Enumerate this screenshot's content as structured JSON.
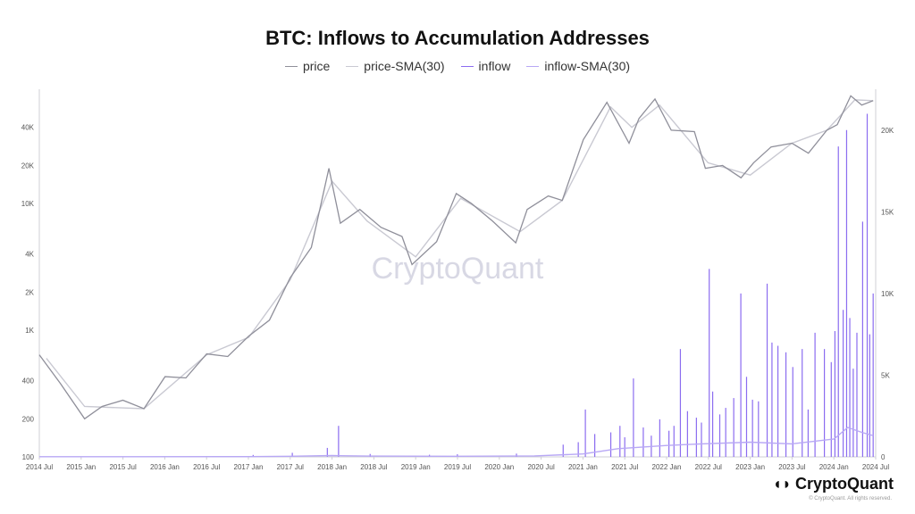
{
  "chart_data": {
    "type": "line",
    "title": "BTC: Inflows to Accumulation Addresses",
    "legend_position": "top-center",
    "grid": false,
    "watermark": "CryptoQuant",
    "x_axis": {
      "range": [
        "2014-07-01",
        "2024-07-01"
      ],
      "tick_labels": [
        "2014 Jul",
        "2015 Jan",
        "2015 Jul",
        "2016 Jan",
        "2016 Jul",
        "2017 Jan",
        "2017 Jul",
        "2018 Jan",
        "2018 Jul",
        "2019 Jan",
        "2019 Jul",
        "2020 Jan",
        "2020 Jul",
        "2021 Jan",
        "2021 Jul",
        "2022 Jan",
        "2022 Jul",
        "2023 Jan",
        "2023 Jul",
        "2024 Jan",
        "2024 Jul"
      ]
    },
    "y_left": {
      "scale": "log",
      "range": [
        100,
        80000
      ],
      "tick_labels": [
        "100",
        "200",
        "400",
        "1K",
        "2K",
        "4K",
        "10K",
        "20K",
        "40K"
      ],
      "tick_values": [
        100,
        200,
        400,
        1000,
        2000,
        4000,
        10000,
        20000,
        40000
      ]
    },
    "y_right": {
      "scale": "linear",
      "range": [
        0,
        22500
      ],
      "tick_labels": [
        "0",
        "5K",
        "10K",
        "15K",
        "20K"
      ],
      "tick_values": [
        0,
        5000,
        10000,
        15000,
        20000
      ]
    },
    "series": [
      {
        "name": "price",
        "axis": "left",
        "color": "#8f8f9a",
        "x": [
          "2014-07-01",
          "2014-10-01",
          "2015-01-15",
          "2015-04-01",
          "2015-07-01",
          "2015-10-01",
          "2016-01-01",
          "2016-04-01",
          "2016-07-01",
          "2016-10-01",
          "2017-01-01",
          "2017-04-01",
          "2017-07-01",
          "2017-10-01",
          "2017-12-17",
          "2018-02-05",
          "2018-05-01",
          "2018-08-01",
          "2018-11-01",
          "2018-12-15",
          "2019-04-01",
          "2019-06-26",
          "2019-09-01",
          "2019-12-01",
          "2020-03-12",
          "2020-05-01",
          "2020-08-01",
          "2020-10-01",
          "2021-01-01",
          "2021-04-14",
          "2021-07-20",
          "2021-09-01",
          "2021-11-10",
          "2022-01-20",
          "2022-05-01",
          "2022-06-18",
          "2022-09-01",
          "2022-11-21",
          "2023-01-15",
          "2023-04-01",
          "2023-07-01",
          "2023-09-11",
          "2023-12-01",
          "2024-01-15",
          "2024-03-14",
          "2024-05-01",
          "2024-06-20"
        ],
        "y": [
          640,
          380,
          200,
          250,
          280,
          240,
          430,
          420,
          650,
          620,
          900,
          1200,
          2600,
          4500,
          19000,
          7000,
          9000,
          6500,
          5500,
          3300,
          5000,
          12000,
          10000,
          7300,
          4900,
          9000,
          11500,
          10600,
          32000,
          63000,
          30000,
          47000,
          67000,
          38000,
          37000,
          19000,
          20000,
          16000,
          21000,
          28000,
          30000,
          25000,
          38000,
          42000,
          71000,
          60000,
          65000
        ]
      },
      {
        "name": "price-SMA(30)",
        "axis": "left",
        "color": "#c9c9d2",
        "x": [
          "2014-08-01",
          "2015-01-15",
          "2015-10-01",
          "2016-07-01",
          "2017-01-01",
          "2017-07-01",
          "2017-12-31",
          "2018-06-01",
          "2018-12-31",
          "2019-07-15",
          "2020-03-31",
          "2020-10-01",
          "2021-04-30",
          "2021-08-01",
          "2021-11-30",
          "2022-06-30",
          "2022-12-31",
          "2023-07-01",
          "2023-12-01",
          "2024-04-01",
          "2024-06-20"
        ],
        "y": [
          600,
          250,
          240,
          640,
          880,
          2500,
          15000,
          7300,
          3800,
          11000,
          6000,
          10600,
          58000,
          40000,
          60000,
          21000,
          16800,
          30000,
          38000,
          66000,
          65000
        ]
      },
      {
        "name": "inflow",
        "axis": "right",
        "color": "#8b6cf0",
        "spikes": [
          [
            "2017-01-20",
            120
          ],
          [
            "2017-07-10",
            250
          ],
          [
            "2017-12-10",
            550
          ],
          [
            "2018-01-28",
            1900
          ],
          [
            "2018-06-15",
            180
          ],
          [
            "2019-03-01",
            130
          ],
          [
            "2019-07-01",
            160
          ],
          [
            "2020-03-15",
            200
          ],
          [
            "2020-10-05",
            750
          ],
          [
            "2020-12-10",
            900
          ],
          [
            "2021-01-10",
            2900
          ],
          [
            "2021-02-20",
            1400
          ],
          [
            "2021-05-01",
            1500
          ],
          [
            "2021-06-10",
            1900
          ],
          [
            "2021-07-01",
            1200
          ],
          [
            "2021-08-08",
            4800
          ],
          [
            "2021-09-20",
            1800
          ],
          [
            "2021-10-25",
            1300
          ],
          [
            "2021-12-01",
            2300
          ],
          [
            "2022-01-10",
            1600
          ],
          [
            "2022-02-01",
            1900
          ],
          [
            "2022-03-01",
            6600
          ],
          [
            "2022-04-01",
            2800
          ],
          [
            "2022-05-10",
            2400
          ],
          [
            "2022-06-01",
            2100
          ],
          [
            "2022-07-05",
            11500
          ],
          [
            "2022-07-20",
            4000
          ],
          [
            "2022-08-20",
            2600
          ],
          [
            "2022-09-15",
            3000
          ],
          [
            "2022-10-20",
            3600
          ],
          [
            "2022-11-20",
            10000
          ],
          [
            "2022-12-15",
            4900
          ],
          [
            "2023-01-10",
            3500
          ],
          [
            "2023-02-05",
            3400
          ],
          [
            "2023-03-15",
            10600
          ],
          [
            "2023-04-05",
            7000
          ],
          [
            "2023-05-01",
            6800
          ],
          [
            "2023-06-05",
            6400
          ],
          [
            "2023-07-05",
            5500
          ],
          [
            "2023-08-15",
            6600
          ],
          [
            "2023-09-10",
            2900
          ],
          [
            "2023-10-10",
            7600
          ],
          [
            "2023-11-20",
            6600
          ],
          [
            "2023-12-20",
            5800
          ],
          [
            "2024-01-05",
            7700
          ],
          [
            "2024-01-20",
            19000
          ],
          [
            "2024-02-10",
            9000
          ],
          [
            "2024-02-25",
            20000
          ],
          [
            "2024-03-10",
            8500
          ],
          [
            "2024-03-25",
            5400
          ],
          [
            "2024-04-10",
            7600
          ],
          [
            "2024-05-05",
            14400
          ],
          [
            "2024-05-25",
            21000
          ],
          [
            "2024-06-05",
            7500
          ],
          [
            "2024-06-20",
            10000
          ]
        ]
      },
      {
        "name": "inflow-SMA(30)",
        "axis": "right",
        "color": "#b8a8f5",
        "x": [
          "2014-07-01",
          "2016-12-31",
          "2017-07-01",
          "2017-12-31",
          "2018-06-01",
          "2019-06-01",
          "2020-06-01",
          "2020-12-31",
          "2021-06-01",
          "2022-01-01",
          "2022-06-01",
          "2023-01-01",
          "2023-07-01",
          "2024-01-01",
          "2024-03-01",
          "2024-05-01",
          "2024-06-20"
        ],
        "y": [
          10,
          15,
          40,
          80,
          50,
          40,
          60,
          180,
          500,
          700,
          800,
          900,
          800,
          1100,
          1800,
          1500,
          1300
        ]
      }
    ]
  },
  "brand": {
    "name": "CryptoQuant",
    "copyright": "© CryptoQuant. All rights reserved."
  },
  "legend": [
    {
      "label": "price",
      "color": "#8f8f9a"
    },
    {
      "label": "price-SMA(30)",
      "color": "#c9c9d2"
    },
    {
      "label": "inflow",
      "color": "#8b6cf0"
    },
    {
      "label": "inflow-SMA(30)",
      "color": "#b8a8f5"
    }
  ]
}
